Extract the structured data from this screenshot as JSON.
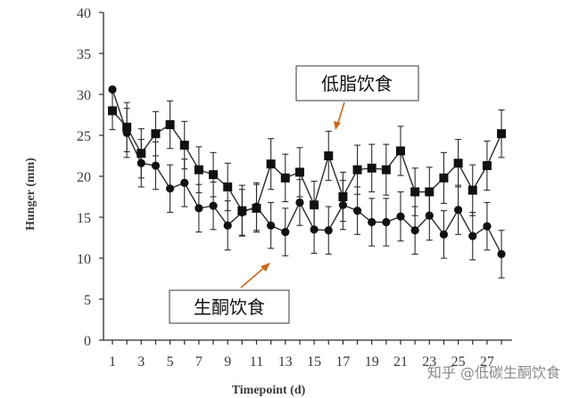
{
  "chart_data": {
    "type": "line",
    "xlabel": "Timepoint (d)",
    "ylabel": "Hunger (mm)",
    "ylim": [
      0,
      40
    ],
    "xlim": [
      1,
      28
    ],
    "x_ticks": [
      1,
      3,
      5,
      7,
      9,
      11,
      13,
      15,
      17,
      19,
      21,
      23,
      25,
      27
    ],
    "y_ticks": [
      0,
      5,
      10,
      15,
      20,
      25,
      30,
      35,
      40
    ],
    "x": [
      1,
      2,
      3,
      4,
      5,
      6,
      7,
      8,
      9,
      10,
      11,
      12,
      13,
      14,
      15,
      16,
      17,
      18,
      19,
      20,
      21,
      22,
      23,
      24,
      25,
      26,
      27,
      28
    ],
    "grid": false,
    "series": [
      {
        "name": "低脂饮食",
        "marker": "square",
        "values": [
          28.0,
          26.0,
          22.8,
          25.2,
          26.3,
          23.8,
          20.8,
          20.2,
          18.7,
          15.8,
          16.1,
          21.5,
          19.8,
          20.5,
          16.5,
          22.5,
          17.5,
          20.8,
          21.0,
          20.8,
          23.1,
          18.1,
          18.1,
          19.8,
          21.6,
          18.3,
          21.3,
          25.2
        ],
        "error": [
          2.3,
          3.0,
          3.0,
          2.7,
          2.9,
          2.9,
          2.8,
          2.7,
          2.9,
          3.1,
          2.9,
          3.1,
          2.9,
          3.0,
          2.9,
          3.0,
          3.0,
          3.0,
          2.9,
          3.1,
          3.0,
          2.9,
          3.0,
          3.1,
          2.9,
          3.1,
          3.0,
          2.9
        ]
      },
      {
        "name": "生酮饮食",
        "marker": "circle",
        "values": [
          30.6,
          25.3,
          21.6,
          21.3,
          18.5,
          19.2,
          16.1,
          16.4,
          14.0,
          15.6,
          16.3,
          14.0,
          13.2,
          16.8,
          13.5,
          13.4,
          16.5,
          15.8,
          14.4,
          14.4,
          15.1,
          13.4,
          15.2,
          12.9,
          15.9,
          12.7,
          13.9,
          10.5
        ],
        "error": [
          0.3,
          3.0,
          2.9,
          2.9,
          2.9,
          2.9,
          2.9,
          2.9,
          3.0,
          2.8,
          2.9,
          2.8,
          2.9,
          2.8,
          2.9,
          2.9,
          3.0,
          2.9,
          2.9,
          2.9,
          3.0,
          2.9,
          3.0,
          2.9,
          3.0,
          2.9,
          2.9,
          2.9
        ]
      }
    ],
    "annotations": [
      {
        "text": "低脂饮食",
        "series": 0
      },
      {
        "text": "生酮饮食",
        "series": 1
      }
    ],
    "watermark": "知乎 @低碳生酮饮食",
    "colors": {
      "line": "#2b2b2b",
      "arrow": "#c9661e",
      "box_border": "#3a3a3a"
    }
  }
}
